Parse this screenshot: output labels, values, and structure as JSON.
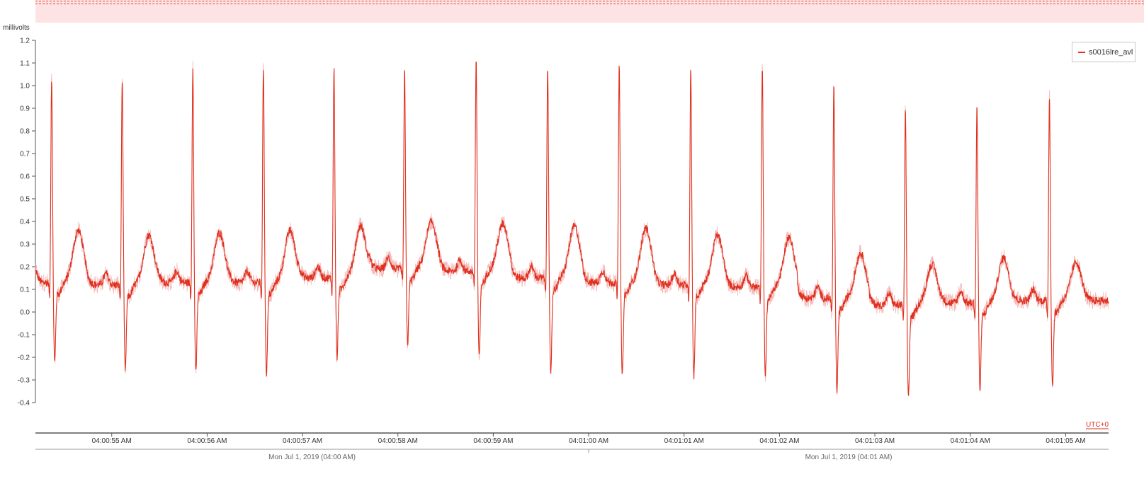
{
  "chart_data": {
    "type": "line",
    "ylabel": "millivolts",
    "ylim": [
      -0.4,
      1.2
    ],
    "y_ticks": [
      "1.2",
      "1.1",
      "1.0",
      "0.9",
      "0.8",
      "0.7",
      "0.6",
      "0.5",
      "0.4",
      "0.3",
      "0.2",
      "0.1",
      "0.0",
      "-0.1",
      "-0.2",
      "-0.3",
      "-0.4"
    ],
    "x_start_seconds": 54.2,
    "x_end_seconds": 65.45,
    "x_ticks": [
      {
        "seconds": 55,
        "label": "04:00:55 AM"
      },
      {
        "seconds": 56,
        "label": "04:00:56 AM"
      },
      {
        "seconds": 57,
        "label": "04:00:57 AM"
      },
      {
        "seconds": 58,
        "label": "04:00:58 AM"
      },
      {
        "seconds": 59,
        "label": "04:00:59 AM"
      },
      {
        "seconds": 60,
        "label": "04:01:00 AM"
      },
      {
        "seconds": 61,
        "label": "04:01:01 AM"
      },
      {
        "seconds": 62,
        "label": "04:01:02 AM"
      },
      {
        "seconds": 63,
        "label": "04:01:03 AM"
      },
      {
        "seconds": 64,
        "label": "04:01:04 AM"
      },
      {
        "seconds": 65,
        "label": "04:01:05 AM"
      }
    ],
    "secondary_axis": {
      "labels": [
        "Mon Jul 1, 2019 (04:00 AM)",
        "Mon Jul 1, 2019 (04:01 AM)"
      ],
      "divider_seconds": 60
    },
    "timezone_label": "UTC+0",
    "grid": false,
    "legend_position": "top-right",
    "series": [
      {
        "name": "s0016lre_avl",
        "color": "#e0301e",
        "beats": [
          {
            "r_time": 54.37,
            "r_peak": 0.99,
            "s_min": -0.2,
            "t_peak": 0.36,
            "baseline": 0.13
          },
          {
            "r_time": 55.11,
            "r_peak": 0.99,
            "s_min": -0.24,
            "t_peak": 0.34,
            "baseline": 0.12
          },
          {
            "r_time": 55.85,
            "r_peak": 1.03,
            "s_min": -0.25,
            "t_peak": 0.35,
            "baseline": 0.13
          },
          {
            "r_time": 56.59,
            "r_peak": 1.04,
            "s_min": -0.25,
            "t_peak": 0.36,
            "baseline": 0.13
          },
          {
            "r_time": 57.33,
            "r_peak": 1.03,
            "s_min": -0.18,
            "t_peak": 0.38,
            "baseline": 0.15
          },
          {
            "r_time": 58.07,
            "r_peak": 1.02,
            "s_min": -0.12,
            "t_peak": 0.4,
            "baseline": 0.19
          },
          {
            "r_time": 58.82,
            "r_peak": 1.07,
            "s_min": -0.18,
            "t_peak": 0.39,
            "baseline": 0.18
          },
          {
            "r_time": 59.57,
            "r_peak": 1.05,
            "s_min": -0.26,
            "t_peak": 0.38,
            "baseline": 0.15
          },
          {
            "r_time": 60.32,
            "r_peak": 1.04,
            "s_min": -0.26,
            "t_peak": 0.37,
            "baseline": 0.13
          },
          {
            "r_time": 61.07,
            "r_peak": 1.04,
            "s_min": -0.26,
            "t_peak": 0.34,
            "baseline": 0.12
          },
          {
            "r_time": 61.82,
            "r_peak": 1.03,
            "s_min": -0.26,
            "t_peak": 0.33,
            "baseline": 0.11
          },
          {
            "r_time": 62.57,
            "r_peak": 0.96,
            "s_min": -0.33,
            "t_peak": 0.26,
            "baseline": 0.06
          },
          {
            "r_time": 63.32,
            "r_peak": 0.84,
            "s_min": -0.35,
            "t_peak": 0.21,
            "baseline": 0.03
          },
          {
            "r_time": 64.07,
            "r_peak": 0.87,
            "s_min": -0.32,
            "t_peak": 0.24,
            "baseline": 0.04
          },
          {
            "r_time": 64.83,
            "r_peak": 0.91,
            "s_min": -0.3,
            "t_peak": 0.22,
            "baseline": 0.05
          }
        ]
      }
    ]
  },
  "legend": {
    "label": "s0016lre_avl"
  }
}
